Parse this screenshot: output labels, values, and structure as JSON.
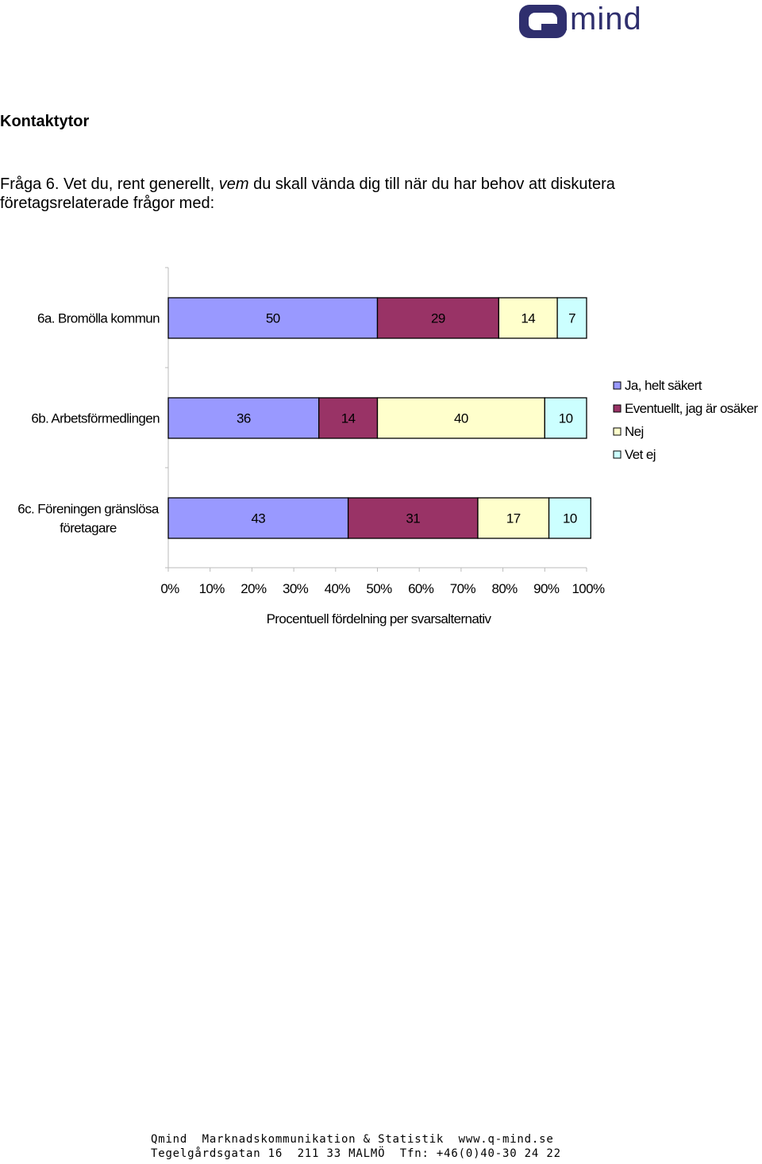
{
  "header": {
    "logo_text": "mind",
    "logo_icon": "q-logo-icon",
    "brand_color": "#2f2f6e"
  },
  "section_title": "Kontaktytor",
  "question": {
    "part1": "Fråga 6. Vet du, rent generellt, ",
    "emphasis": "vem",
    "part2": " du skall vända dig till när du har behov att diskutera företagsrelaterade frågor med:"
  },
  "chart_data": {
    "type": "bar",
    "orientation": "horizontal",
    "stacked": true,
    "categories": [
      "6a. Bromölla kommun",
      "6b. Arbetsförmedlingen",
      "6c. Föreningen gränslösa företagare"
    ],
    "category_lines": [
      [
        "6a. Bromölla kommun"
      ],
      [
        "6b. Arbetsförmedlingen"
      ],
      [
        "6c. Föreningen gränslösa",
        "företagare"
      ]
    ],
    "series": [
      {
        "name": "Ja, helt säkert",
        "color": "#9999ff",
        "values": [
          50,
          36,
          43
        ]
      },
      {
        "name": "Eventuellt, jag är osäker",
        "color": "#993366",
        "values": [
          29,
          14,
          31
        ]
      },
      {
        "name": "Nej",
        "color": "#ffffcc",
        "values": [
          14,
          40,
          17
        ]
      },
      {
        "name": "Vet ej",
        "color": "#ccffff",
        "values": [
          7,
          10,
          10
        ]
      }
    ],
    "xlim": [
      0,
      100
    ],
    "xticks": [
      "0%",
      "10%",
      "20%",
      "30%",
      "40%",
      "50%",
      "60%",
      "70%",
      "80%",
      "90%",
      "100%"
    ],
    "xlabel": "Procentuell fördelning per svarsalternativ",
    "legend_position": "right",
    "grid": false
  },
  "footer": {
    "line1": "Qmind  Marknadskommunikation & Statistik  www.q-mind.se",
    "line2": "Tegelgårdsgatan 16  211 33 MALMÖ  Tfn: +46(0)40-30 24 22"
  }
}
